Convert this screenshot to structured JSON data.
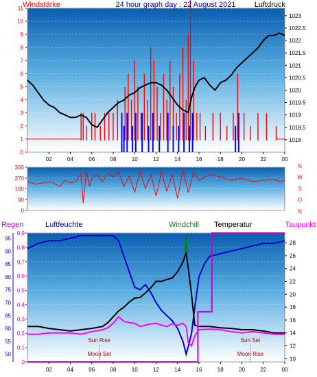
{
  "chart_data": [
    {
      "type": "line",
      "panel": "wind-and-pressure",
      "title": "24 hour graph day : 22 August 2021",
      "left_label": "Windstärke",
      "right_label": "Luftdruck",
      "colors": {
        "wind": "#ff0000",
        "gust": "#0000ff",
        "pressure": "#000000",
        "left_axis": "#ff0000",
        "right_axis": "#000000",
        "title": "#0000cc"
      },
      "x_ticks": [
        "02",
        "04",
        "06",
        "08",
        "10",
        "12",
        "14",
        "16",
        "18",
        "20",
        "22",
        "00"
      ],
      "x_range": [
        0,
        24
      ],
      "left_axis": {
        "ylim": [
          0,
          11
        ],
        "ticks": [
          "0",
          "1",
          "2",
          "3",
          "4",
          "5",
          "6",
          "7",
          "8",
          "9",
          "10",
          "11"
        ]
      },
      "right_axis": {
        "ylim": [
          1017.5,
          1023.3
        ],
        "ticks": [
          "1018",
          "1018.5",
          "1019",
          "1019.5",
          "1020",
          "1020.5",
          "1021",
          "1021.5",
          "1022",
          "1022.5",
          "1023"
        ]
      },
      "series": [
        {
          "role": "pressure",
          "axis": "right",
          "x": [
            0,
            0.5,
            1,
            1.5,
            2,
            2.5,
            3,
            3.5,
            4,
            4.5,
            5,
            5.5,
            6,
            6.5,
            7,
            7.5,
            8,
            8.5,
            9,
            9.5,
            10,
            10.5,
            11,
            11.5,
            12,
            12.5,
            13,
            13.5,
            14,
            14.5,
            15,
            15.3,
            15.6,
            16,
            16.5,
            17,
            17.5,
            18,
            18.5,
            19,
            19.5,
            20,
            20.5,
            21,
            21.5,
            22,
            22.5,
            23,
            23.5,
            24
          ],
          "y": [
            1020.4,
            1020.2,
            1019.9,
            1019.6,
            1019.4,
            1019.3,
            1019.1,
            1019.0,
            1018.9,
            1018.9,
            1019.0,
            1018.9,
            1018.6,
            1018.5,
            1018.8,
            1019.1,
            1019.3,
            1019.5,
            1019.6,
            1019.8,
            1019.9,
            1020.1,
            1020.2,
            1020.3,
            1020.3,
            1020.2,
            1020.0,
            1019.7,
            1019.4,
            1019.2,
            1019.1,
            1019.7,
            1020.1,
            1020.4,
            1020.5,
            1020.2,
            1020.0,
            1020.3,
            1020.4,
            1020.6,
            1020.9,
            1021.1,
            1021.3,
            1021.5,
            1021.7,
            1022.0,
            1022.2,
            1022.2,
            1022.3,
            1022.2
          ]
        },
        {
          "role": "wind",
          "axis": "left",
          "x": [
            5.0,
            5.2,
            5.5,
            6.0,
            6.3,
            6.8,
            7.2,
            7.6,
            8.0,
            8.4,
            8.8,
            9.1,
            9.4,
            9.7,
            10.0,
            10.3,
            10.6,
            10.9,
            11.2,
            11.5,
            11.8,
            12.1,
            12.4,
            12.7,
            13.0,
            13.3,
            13.6,
            13.9,
            14.2,
            14.5,
            14.8,
            15.0,
            15.2,
            15.5,
            15.8,
            16.1,
            16.6,
            17.3,
            18.0,
            18.6,
            19.2,
            19.6,
            20.2,
            20.8,
            21.5,
            22.3,
            23.2
          ],
          "y": [
            3,
            3,
            2,
            3,
            3,
            2,
            3,
            3,
            3,
            4,
            3,
            5,
            6,
            4,
            7,
            5,
            3,
            6,
            4,
            8,
            7,
            5,
            3,
            6,
            4,
            7,
            5,
            3,
            6,
            8,
            4,
            9,
            12,
            7,
            3,
            3,
            2,
            3,
            3,
            2,
            3,
            6,
            3,
            2,
            3,
            3,
            2
          ]
        },
        {
          "role": "gust",
          "axis": "left",
          "x": [
            8.8,
            9.0,
            9.3,
            9.8,
            10.1,
            10.7,
            11.3,
            11.7,
            12.3,
            13.1,
            13.6,
            14.1,
            14.6,
            15.1,
            15.4,
            19.4,
            19.7
          ],
          "y": [
            3,
            2,
            3,
            2,
            3,
            3,
            2,
            3,
            2,
            3,
            2,
            2,
            3,
            2,
            3,
            2,
            3
          ]
        }
      ]
    },
    {
      "type": "line",
      "panel": "wind-direction",
      "ylim": [
        0,
        360
      ],
      "y_ticks": [
        "360",
        "270",
        "180",
        "90",
        "0"
      ],
      "right_labels": [
        "N",
        "W",
        "S",
        "O",
        "N"
      ],
      "x_range": [
        0,
        24
      ],
      "x_ticks": [],
      "colors": {
        "direction": "#ff0000",
        "axis": "#ff0000"
      },
      "series": [
        {
          "role": "direction",
          "x": [
            0,
            0.8,
            1.5,
            2.2,
            3.0,
            3.5,
            4.0,
            4.5,
            5.0,
            5.2,
            5.5,
            5.8,
            6.0,
            6.5,
            7.0,
            7.5,
            8.0,
            8.5,
            9.0,
            9.5,
            10.0,
            10.5,
            11.0,
            11.5,
            12.0,
            12.5,
            13.0,
            13.5,
            14.0,
            14.5,
            15.0,
            15.5,
            16.0,
            17.0,
            18.0,
            19.0,
            20.0,
            21.0,
            22.0,
            23.0,
            23.5,
            24.0
          ],
          "y": [
            240,
            220,
            230,
            240,
            200,
            250,
            230,
            240,
            310,
            60,
            330,
            200,
            270,
            300,
            240,
            310,
            280,
            320,
            200,
            290,
            150,
            330,
            180,
            300,
            120,
            320,
            160,
            300,
            100,
            340,
            150,
            320,
            250,
            300,
            280,
            250,
            270,
            240,
            250,
            260,
            240,
            250
          ]
        }
      ]
    },
    {
      "type": "line",
      "panel": "rain-humidity-temperature",
      "labels": {
        "rain": "Regen",
        "humidity": "Luftfeuchte",
        "windchill": "Windchill",
        "temperature": "Temperatur",
        "dewpoint": "Taupunkt"
      },
      "colors": {
        "rain": "#cc00cc",
        "humidity": "#0000cc",
        "windchill": "#008800",
        "temperature": "#000000",
        "dewpoint": "#ff00ff"
      },
      "axes": {
        "rain": {
          "ylim": [
            0,
            0.9
          ],
          "ticks": [
            "0",
            "0.1",
            "0.2",
            "0.3",
            "0.4",
            "0.5",
            "0.6",
            "0.7",
            "0.8",
            "0.9"
          ]
        },
        "humidity": {
          "ylim": [
            47,
            97
          ],
          "ticks": [
            "50",
            "55",
            "60",
            "65",
            "70",
            "75",
            "80",
            "85",
            "90",
            "95"
          ]
        },
        "temperature": {
          "ylim": [
            9.5,
            29.5
          ],
          "ticks": [
            "10",
            "12",
            "14",
            "16",
            "18",
            "20",
            "22",
            "24",
            "26",
            "28"
          ]
        }
      },
      "x_ticks": [
        "02",
        "04",
        "06",
        "08",
        "10",
        "12",
        "14",
        "16",
        "18",
        "20",
        "22",
        "00"
      ],
      "x_range": [
        0,
        24
      ],
      "annotations": [
        {
          "text": "Sun Rise",
          "x": 6.7
        },
        {
          "text": "Moon Set",
          "x": 6.7
        },
        {
          "text": "Sun Set",
          "x": 20.8
        },
        {
          "text": "Moon Rise",
          "x": 20.8
        }
      ],
      "series": [
        {
          "role": "humidity",
          "axis": "humidity",
          "x": [
            0,
            0.5,
            1,
            2,
            3,
            4,
            5,
            6,
            7,
            8,
            8.5,
            9,
            9.5,
            10,
            10.5,
            11,
            11.5,
            12,
            12.5,
            13,
            13.5,
            14,
            14.5,
            14.8,
            15,
            15.3,
            15.6,
            16,
            16.5,
            17,
            18,
            19,
            20,
            21,
            22,
            23,
            24
          ],
          "y": [
            91,
            92,
            93,
            94,
            94,
            95,
            96,
            96,
            96,
            96,
            94,
            88,
            82,
            76,
            75,
            77,
            74,
            70,
            67,
            65,
            63,
            60,
            55,
            50,
            53,
            58,
            68,
            80,
            85,
            88,
            89,
            90,
            91,
            92,
            93,
            93,
            94
          ]
        },
        {
          "role": "temperature",
          "axis": "temperature",
          "x": [
            0,
            1,
            2,
            3,
            4,
            5,
            6,
            7,
            7.5,
            8,
            8.5,
            9,
            9.5,
            10,
            10.5,
            11,
            11.5,
            12,
            12.5,
            13,
            13.5,
            14,
            14.5,
            14.8,
            15,
            15.3,
            15.6,
            16,
            17,
            18,
            19,
            20,
            21,
            22,
            23,
            24
          ],
          "y": [
            15.0,
            15.0,
            14.7,
            14.5,
            14.3,
            14.5,
            14.7,
            15.0,
            15.6,
            16.5,
            17.4,
            18.0,
            18.8,
            19.4,
            19.5,
            20.2,
            21.0,
            22.0,
            22.0,
            22.3,
            22.5,
            23.5,
            25.0,
            26.5,
            24.0,
            20.0,
            15.2,
            15.0,
            15.0,
            14.8,
            14.7,
            14.5,
            14.5,
            14.3,
            14.0,
            14.0
          ]
        },
        {
          "role": "dewpoint",
          "axis": "temperature",
          "x": [
            0,
            1,
            2,
            3,
            4,
            5,
            6,
            7,
            7.5,
            8,
            8.5,
            9,
            9.5,
            10,
            10.5,
            11,
            11.5,
            12,
            12.5,
            13,
            13.5,
            14,
            14.5,
            14.8,
            15,
            15.3,
            15.6,
            16,
            17,
            18,
            19,
            20,
            21,
            22,
            23,
            24
          ],
          "y": [
            13.8,
            13.8,
            14.0,
            14.0,
            14.0,
            13.8,
            14.2,
            14.5,
            14.8,
            15.5,
            16.5,
            15.8,
            15.6,
            15.5,
            15.0,
            15.2,
            15.4,
            15.5,
            15.2,
            15.0,
            15.4,
            15.2,
            15.5,
            15.0,
            12.5,
            12.0,
            13.5,
            14.5,
            14.6,
            14.5,
            14.2,
            14.0,
            14.2,
            14.0,
            13.8,
            13.8
          ]
        },
        {
          "role": "windchill",
          "axis": "temperature",
          "x": [
            14.7,
            14.8,
            14.9
          ],
          "y": [
            26.5,
            29.0,
            26.5
          ]
        },
        {
          "role": "rain",
          "axis": "rain",
          "x": [
            0,
            15.9,
            15.9,
            17.2,
            17.2,
            24
          ],
          "y": [
            0,
            0,
            0.35,
            0.35,
            0.9,
            0.9
          ]
        }
      ]
    }
  ]
}
